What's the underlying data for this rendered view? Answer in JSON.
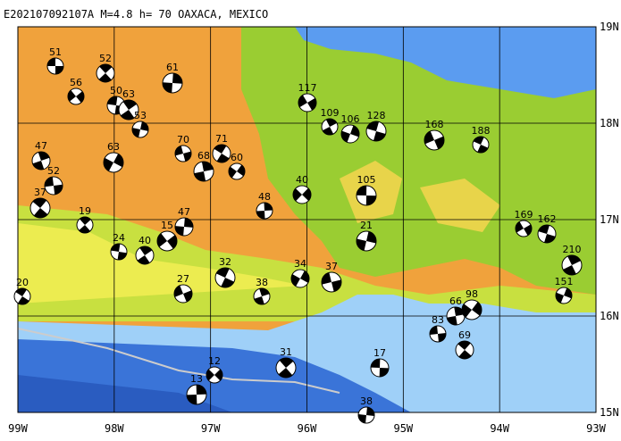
{
  "header": {
    "title": "E202107092107A  M=4.8  h= 70  OAXACA, MEXICO"
  },
  "axes": {
    "x_labels": [
      "99W",
      "98W",
      "97W",
      "96W",
      "95W",
      "94W",
      "93W"
    ],
    "y_labels": [
      "19N",
      "18N",
      "17N",
      "16N",
      "15N"
    ]
  },
  "mechanisms": {
    "depths": [
      51,
      52,
      61,
      56,
      50,
      63,
      53,
      117,
      128,
      109,
      106,
      168,
      188,
      47,
      63,
      70,
      71,
      68,
      60,
      52,
      37,
      48,
      40,
      105,
      19,
      47,
      15,
      24,
      40,
      21,
      169,
      162,
      210,
      151,
      27,
      32,
      38,
      34,
      37,
      20,
      66,
      98,
      83,
      69,
      13,
      12,
      17,
      31,
      38
    ]
  }
}
